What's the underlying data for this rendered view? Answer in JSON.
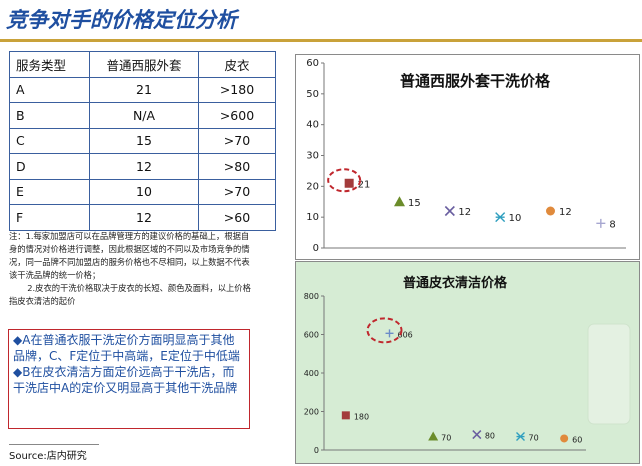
{
  "page": {
    "title": "竞争对手的价格定位分析",
    "source": "Source:店内研究"
  },
  "table": {
    "headers": [
      "服务类型",
      "普通西服外套",
      "皮衣"
    ],
    "rows": [
      [
        "A",
        "21",
        ">180"
      ],
      [
        "B",
        "N/A",
        ">600"
      ],
      [
        "C",
        "15",
        ">70"
      ],
      [
        "D",
        "12",
        ">80"
      ],
      [
        "E",
        "10",
        ">70"
      ],
      [
        "F",
        "12",
        ">60"
      ]
    ]
  },
  "notes": {
    "note1": "注：1.每家加盟店可以在品牌管理方的建议价格的基础上，根据自身的情况对价格进行调整，因此根据区域的不同以及市场竞争的情况，同一品牌不同加盟店的服务价格也不尽相同，以上数据不代表该干洗品牌的统一价格；",
    "note2": "2.皮衣的干洗价格取决于皮衣的长短、颜色及面料，以上价格指皮衣清洁的起价"
  },
  "summary": {
    "point1": "◆A在普通衣服干洗定价方面明显高于其他品牌，C、F定位于中高端，E定位于中低端",
    "point2": "◆B在皮衣清洁方面定价远高于干洗店，而干洗店中A的定价又明显高于其他干洗品牌"
  },
  "chart_data": [
    {
      "type": "scatter",
      "title": "普通西服外套干洗价格",
      "ylim": [
        0,
        60
      ],
      "yticks": [
        0,
        10,
        20,
        30,
        40,
        50,
        60
      ],
      "grid": false,
      "x": [
        1,
        2,
        3,
        4,
        5,
        6
      ],
      "values": [
        21,
        15,
        12,
        10,
        12,
        8
      ],
      "data_labels": [
        "21",
        "15",
        "12",
        "10",
        "12",
        "8"
      ],
      "marker_colors": [
        "#a33b3b",
        "#6b8c2a",
        "#6a5fa0",
        "#2f9fbf",
        "#e08a3c",
        "#a6a6d0"
      ],
      "marker_shapes": [
        "square",
        "triangle",
        "x",
        "star",
        "circle",
        "plus"
      ],
      "highlight_index": 0,
      "highlight_color": "#c0272d"
    },
    {
      "type": "scatter",
      "title": "普通皮衣清洁价格",
      "ylim": [
        0,
        800
      ],
      "yticks": [
        0,
        200,
        400,
        600,
        800
      ],
      "grid": false,
      "x": [
        1,
        2,
        3,
        4,
        5,
        6
      ],
      "values": [
        180,
        606,
        70,
        80,
        70,
        60
      ],
      "data_labels": [
        "180",
        "606",
        "70",
        "80",
        "70",
        "60"
      ],
      "marker_colors": [
        "#a33b3b",
        "#6b8cc8",
        "#6b8c2a",
        "#6a5fa0",
        "#2f9fbf",
        "#e08a3c"
      ],
      "marker_shapes": [
        "square",
        "plus",
        "triangle",
        "x",
        "star",
        "circle"
      ],
      "highlight_index": 1,
      "highlight_color": "#c0272d",
      "background": "#d6ecd4"
    }
  ]
}
